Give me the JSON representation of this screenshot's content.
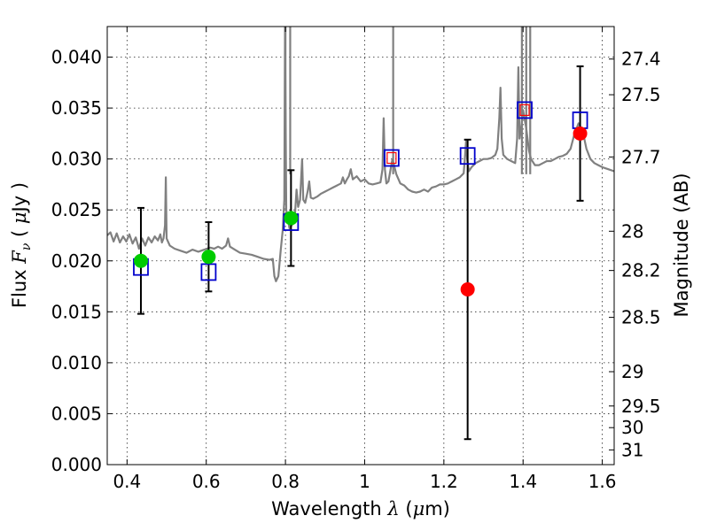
{
  "chart_data": {
    "type": "scatter",
    "xlabel_parts": [
      "Wavelength  ",
      "λ",
      " (",
      "μ",
      "m)"
    ],
    "ylabel_parts": [
      "Flux  ",
      "F",
      "ν",
      "  ( ",
      "μ",
      "Jy )"
    ],
    "y2label": "Magnitude (AB)",
    "xlim": [
      0.35,
      1.63
    ],
    "ylim": [
      0.0,
      0.043
    ],
    "x_ticks": [
      "0.4",
      "0.6",
      "0.8",
      "1",
      "1.2",
      "1.4",
      "1.6"
    ],
    "y_ticks": [
      "0.000",
      "0.005",
      "0.010",
      "0.015",
      "0.020",
      "0.025",
      "0.030",
      "0.035",
      "0.040"
    ],
    "y2_ticks": [
      "27.4",
      "27.5",
      "27.7",
      "28",
      "28.2",
      "28.5",
      "29",
      "29.5",
      "30",
      "31"
    ],
    "grid": true,
    "colors": {
      "spectrum": "#808080",
      "model": "#0000cc",
      "model_inner": "#ff0000",
      "obs_green": "#00cc00",
      "obs_red": "#ff0000",
      "errorbar": "#000000"
    },
    "series": [
      {
        "marker": "open-square",
        "color": "#0000cc",
        "points": [
          {
            "x": 0.435,
            "y": 0.0194
          },
          {
            "x": 0.606,
            "y": 0.0189
          },
          {
            "x": 0.814,
            "y": 0.0238
          },
          {
            "x": 1.068,
            "y": 0.0301
          },
          {
            "x": 1.26,
            "y": 0.0303
          },
          {
            "x": 1.404,
            "y": 0.0348
          },
          {
            "x": 1.544,
            "y": 0.0338
          }
        ]
      },
      {
        "marker": "filled-circle",
        "points": [
          {
            "x": 0.435,
            "y": 0.02,
            "err": 0.0052,
            "color": "#00cc00"
          },
          {
            "x": 0.606,
            "y": 0.0204,
            "err": 0.0034,
            "color": "#00cc00"
          },
          {
            "x": 0.814,
            "y": 0.0242,
            "err": 0.0047,
            "color": "#00cc00"
          },
          {
            "x": 1.26,
            "y": 0.0172,
            "err": 0.0147,
            "color": "#ff0000"
          },
          {
            "x": 1.544,
            "y": 0.0325,
            "err": 0.0066,
            "color": "#ff0000"
          }
        ]
      }
    ],
    "spectrum": [
      [
        0.35,
        0.0225
      ],
      [
        0.358,
        0.0228
      ],
      [
        0.366,
        0.0219
      ],
      [
        0.374,
        0.0227
      ],
      [
        0.382,
        0.0218
      ],
      [
        0.39,
        0.0224
      ],
      [
        0.398,
        0.0219
      ],
      [
        0.406,
        0.0226
      ],
      [
        0.414,
        0.0217
      ],
      [
        0.422,
        0.0223
      ],
      [
        0.43,
        0.0212
      ],
      [
        0.438,
        0.0222
      ],
      [
        0.446,
        0.0215
      ],
      [
        0.454,
        0.0223
      ],
      [
        0.462,
        0.0218
      ],
      [
        0.47,
        0.0224
      ],
      [
        0.478,
        0.022
      ],
      [
        0.484,
        0.0226
      ],
      [
        0.488,
        0.0218
      ],
      [
        0.492,
        0.0222
      ],
      [
        0.496,
        0.0235
      ],
      [
        0.498,
        0.0282
      ],
      [
        0.5,
        0.0222
      ],
      [
        0.508,
        0.0215
      ],
      [
        0.52,
        0.0212
      ],
      [
        0.535,
        0.021
      ],
      [
        0.55,
        0.0208
      ],
      [
        0.565,
        0.0211
      ],
      [
        0.58,
        0.0209
      ],
      [
        0.595,
        0.0211
      ],
      [
        0.61,
        0.0213
      ],
      [
        0.62,
        0.0212
      ],
      [
        0.63,
        0.0214
      ],
      [
        0.64,
        0.0212
      ],
      [
        0.65,
        0.0215
      ],
      [
        0.655,
        0.0222
      ],
      [
        0.66,
        0.0214
      ],
      [
        0.672,
        0.0211
      ],
      [
        0.685,
        0.0208
      ],
      [
        0.7,
        0.0207
      ],
      [
        0.715,
        0.0206
      ],
      [
        0.73,
        0.0204
      ],
      [
        0.745,
        0.0202
      ],
      [
        0.76,
        0.0201
      ],
      [
        0.768,
        0.0202
      ],
      [
        0.772,
        0.0185
      ],
      [
        0.776,
        0.018
      ],
      [
        0.782,
        0.0185
      ],
      [
        0.788,
        0.021
      ],
      [
        0.793,
        0.023
      ],
      [
        0.797,
        0.026
      ],
      [
        0.799,
        0.043
      ],
      [
        0.802,
        0.025
      ],
      [
        0.81,
        0.0232
      ],
      [
        0.818,
        0.0236
      ],
      [
        0.824,
        0.0245
      ],
      [
        0.828,
        0.027
      ],
      [
        0.832,
        0.0253
      ],
      [
        0.837,
        0.026
      ],
      [
        0.842,
        0.03
      ],
      [
        0.845,
        0.026
      ],
      [
        0.85,
        0.0257
      ],
      [
        0.856,
        0.0268
      ],
      [
        0.86,
        0.0278
      ],
      [
        0.864,
        0.0262
      ],
      [
        0.87,
        0.0261
      ],
      [
        0.88,
        0.0263
      ],
      [
        0.89,
        0.0266
      ],
      [
        0.9,
        0.0268
      ],
      [
        0.91,
        0.027
      ],
      [
        0.92,
        0.0272
      ],
      [
        0.93,
        0.0274
      ],
      [
        0.94,
        0.0276
      ],
      [
        0.945,
        0.0282
      ],
      [
        0.95,
        0.0276
      ],
      [
        0.955,
        0.028
      ],
      [
        0.96,
        0.0283
      ],
      [
        0.965,
        0.029
      ],
      [
        0.97,
        0.028
      ],
      [
        0.98,
        0.0283
      ],
      [
        0.99,
        0.0278
      ],
      [
        1.0,
        0.028
      ],
      [
        1.01,
        0.0276
      ],
      [
        1.02,
        0.0275
      ],
      [
        1.03,
        0.0276
      ],
      [
        1.04,
        0.0277
      ],
      [
        1.045,
        0.029
      ],
      [
        1.048,
        0.034
      ],
      [
        1.051,
        0.029
      ],
      [
        1.055,
        0.0276
      ],
      [
        1.06,
        0.0278
      ],
      [
        1.07,
        0.03
      ],
      [
        1.08,
        0.0285
      ],
      [
        1.09,
        0.0276
      ],
      [
        1.1,
        0.0274
      ],
      [
        1.11,
        0.027
      ],
      [
        1.12,
        0.0268
      ],
      [
        1.13,
        0.0267
      ],
      [
        1.14,
        0.0268
      ],
      [
        1.15,
        0.027
      ],
      [
        1.16,
        0.0268
      ],
      [
        1.17,
        0.0272
      ],
      [
        1.18,
        0.0273
      ],
      [
        1.19,
        0.0275
      ],
      [
        1.2,
        0.0275
      ],
      [
        1.21,
        0.0276
      ],
      [
        1.22,
        0.0278
      ],
      [
        1.23,
        0.028
      ],
      [
        1.24,
        0.0282
      ],
      [
        1.25,
        0.0286
      ],
      [
        1.253,
        0.03
      ],
      [
        1.256,
        0.0318
      ],
      [
        1.259,
        0.03
      ],
      [
        1.263,
        0.0288
      ],
      [
        1.27,
        0.0292
      ],
      [
        1.28,
        0.0296
      ],
      [
        1.29,
        0.0298
      ],
      [
        1.3,
        0.03
      ],
      [
        1.31,
        0.03
      ],
      [
        1.32,
        0.0301
      ],
      [
        1.33,
        0.0304
      ],
      [
        1.335,
        0.031
      ],
      [
        1.34,
        0.034
      ],
      [
        1.343,
        0.037
      ],
      [
        1.346,
        0.032
      ],
      [
        1.35,
        0.0304
      ],
      [
        1.36,
        0.03
      ],
      [
        1.37,
        0.0298
      ],
      [
        1.38,
        0.0296
      ],
      [
        1.385,
        0.032
      ],
      [
        1.388,
        0.039
      ],
      [
        1.391,
        0.032
      ],
      [
        1.395,
        0.033
      ],
      [
        1.4,
        0.0348
      ],
      [
        1.408,
        0.033
      ],
      [
        1.415,
        0.0308
      ],
      [
        1.42,
        0.03
      ],
      [
        1.43,
        0.0294
      ],
      [
        1.44,
        0.0294
      ],
      [
        1.45,
        0.0296
      ],
      [
        1.46,
        0.0298
      ],
      [
        1.47,
        0.0298
      ],
      [
        1.48,
        0.03
      ],
      [
        1.49,
        0.0302
      ],
      [
        1.5,
        0.0303
      ],
      [
        1.51,
        0.0305
      ],
      [
        1.52,
        0.031
      ],
      [
        1.53,
        0.0325
      ],
      [
        1.54,
        0.0335
      ],
      [
        1.55,
        0.0328
      ],
      [
        1.56,
        0.031
      ],
      [
        1.57,
        0.03
      ],
      [
        1.58,
        0.0296
      ],
      [
        1.59,
        0.0294
      ],
      [
        1.6,
        0.0292
      ],
      [
        1.615,
        0.029
      ],
      [
        1.63,
        0.0288
      ]
    ],
    "spectrum_spikes": [
      {
        "x": 0.8,
        "y": 0.043
      },
      {
        "x": 0.812,
        "y": 0.043
      },
      {
        "x": 1.072,
        "y": 0.043
      },
      {
        "x": 1.397,
        "y": 0.043
      },
      {
        "x": 1.408,
        "y": 0.043
      },
      {
        "x": 1.418,
        "y": 0.043
      }
    ]
  }
}
